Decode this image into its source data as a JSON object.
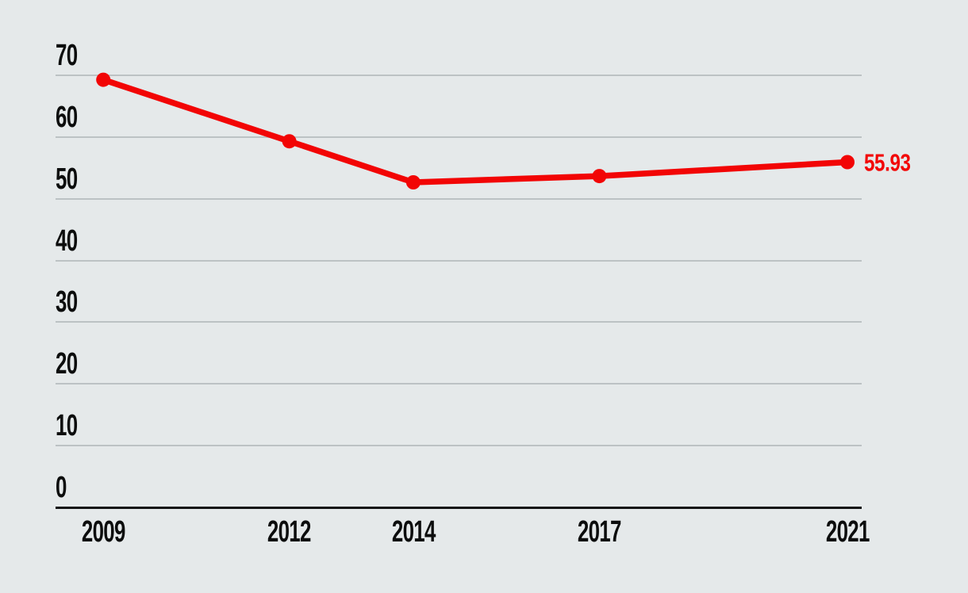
{
  "chart_data": {
    "type": "line",
    "title": "",
    "x": [
      2009,
      2012,
      2014,
      2017,
      2021
    ],
    "x_tick_labels": [
      "2009",
      "2012",
      "2014",
      "2017",
      "2021"
    ],
    "series": [
      {
        "name": "",
        "values": [
          69.28,
          59.32,
          52.66,
          53.68,
          55.93
        ]
      }
    ],
    "end_label": "55.93",
    "y_ticks": [
      0,
      10,
      20,
      30,
      40,
      50,
      60,
      70
    ],
    "y_tick_labels": [
      "0",
      "10",
      "20",
      "30",
      "40",
      "50",
      "60",
      "70"
    ],
    "ylim": [
      0,
      70
    ],
    "xlim": [
      2008.23,
      2021.23
    ],
    "grid": "horizontal",
    "legend": "none",
    "colors": {
      "background": "#e5e9ea",
      "line": "#f20505",
      "marker": "#f20505",
      "gridline": "#bcc2c4",
      "axis": "#121313",
      "tick_text": "#0c0d0d",
      "end_label_text": "#f20505"
    }
  }
}
